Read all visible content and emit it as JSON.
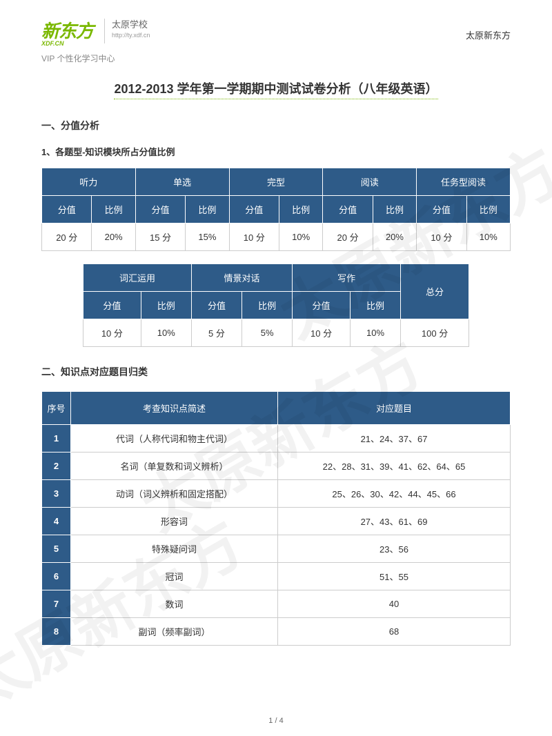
{
  "header": {
    "logo_main": "新东方",
    "logo_sub": "XDF.CN",
    "school": "太原学校",
    "url": "http://ty.xdf.cn",
    "right": "太原新东方",
    "vip": "VIP 个性化学习中心"
  },
  "title": "2012-2013 学年第一学期期中测试试卷分析（八年级英语）",
  "section1": "一、分值分析",
  "sub1": "1、各题型-知识模块所占分值比例",
  "table1": {
    "groups": [
      "听力",
      "单选",
      "完型",
      "阅读",
      "任务型阅读"
    ],
    "sub_headers": [
      "分值",
      "比例"
    ],
    "row": [
      "20 分",
      "20%",
      "15 分",
      "15%",
      "10 分",
      "10%",
      "20 分",
      "20%",
      "10 分",
      "10%"
    ]
  },
  "table2": {
    "groups": [
      "词汇运用",
      "情景对话",
      "写作"
    ],
    "total_label": "总分",
    "sub_headers": [
      "分值",
      "比例"
    ],
    "row": [
      "10 分",
      "10%",
      "5 分",
      "5%",
      "10 分",
      "10%",
      "100 分"
    ]
  },
  "section2": "二、知识点对应题目归类",
  "table3": {
    "headers": [
      "序号",
      "考查知识点简述",
      "对应题目"
    ],
    "rows": [
      {
        "n": "1",
        "d": "代词（人称代词和物主代词）",
        "q": "21、24、37、67"
      },
      {
        "n": "2",
        "d": "名词（单复数和词义辨析）",
        "q": "22、28、31、39、41、62、64、65"
      },
      {
        "n": "3",
        "d": "动词（词义辨析和固定搭配）",
        "q": "25、26、30、42、44、45、66"
      },
      {
        "n": "4",
        "d": "形容词",
        "q": "27、43、61、69"
      },
      {
        "n": "5",
        "d": "特殊疑问词",
        "q": "23、56"
      },
      {
        "n": "6",
        "d": "冠词",
        "q": "51、55"
      },
      {
        "n": "7",
        "d": "数词",
        "q": "40"
      },
      {
        "n": "8",
        "d": "副词（频率副词）",
        "q": "68"
      }
    ]
  },
  "page": "1 / 4",
  "watermark": "太原新东方",
  "colors": {
    "header_bg": "#2e5b88",
    "logo_green": "#7ab800",
    "border": "#cccccc"
  }
}
